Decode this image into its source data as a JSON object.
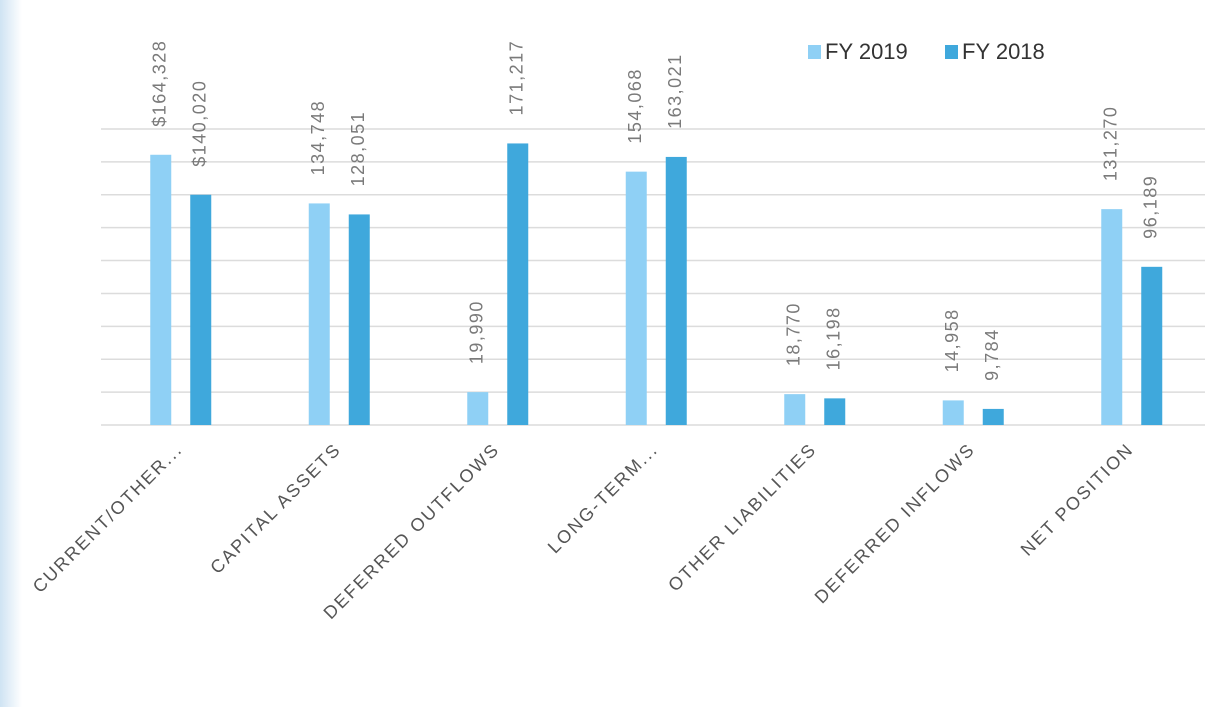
{
  "chart_data": {
    "type": "bar",
    "categories": [
      "CURRENT/OTHER...",
      "CAPITAL ASSETS",
      "DEFERRED OUTFLOWS",
      "LONG-TERM...",
      "OTHER LIABILITIES",
      "DEFERRED INFLOWS",
      "NET POSITION"
    ],
    "series": [
      {
        "name": "FY 2019",
        "color": "#8fd0f5",
        "values": [
          164328,
          134748,
          19990,
          154068,
          18770,
          14958,
          131270
        ],
        "value_labels": [
          "$164,328",
          "134,748",
          "19,990",
          "154,068",
          "18,770",
          "14,958",
          "131,270"
        ]
      },
      {
        "name": "FY 2018",
        "color": "#3fa8dc",
        "values": [
          140020,
          128051,
          171217,
          163021,
          16198,
          9784,
          96189
        ],
        "value_labels": [
          "$140,020",
          "128,051",
          "171,217",
          "163,021",
          "16,198",
          "9,784",
          "96,189"
        ]
      }
    ],
    "ylim": [
      0,
      180000
    ],
    "yticks": [
      0,
      20000,
      40000,
      60000,
      80000,
      100000,
      120000,
      140000,
      160000,
      180000
    ],
    "grid": true,
    "legend": "top-right"
  }
}
